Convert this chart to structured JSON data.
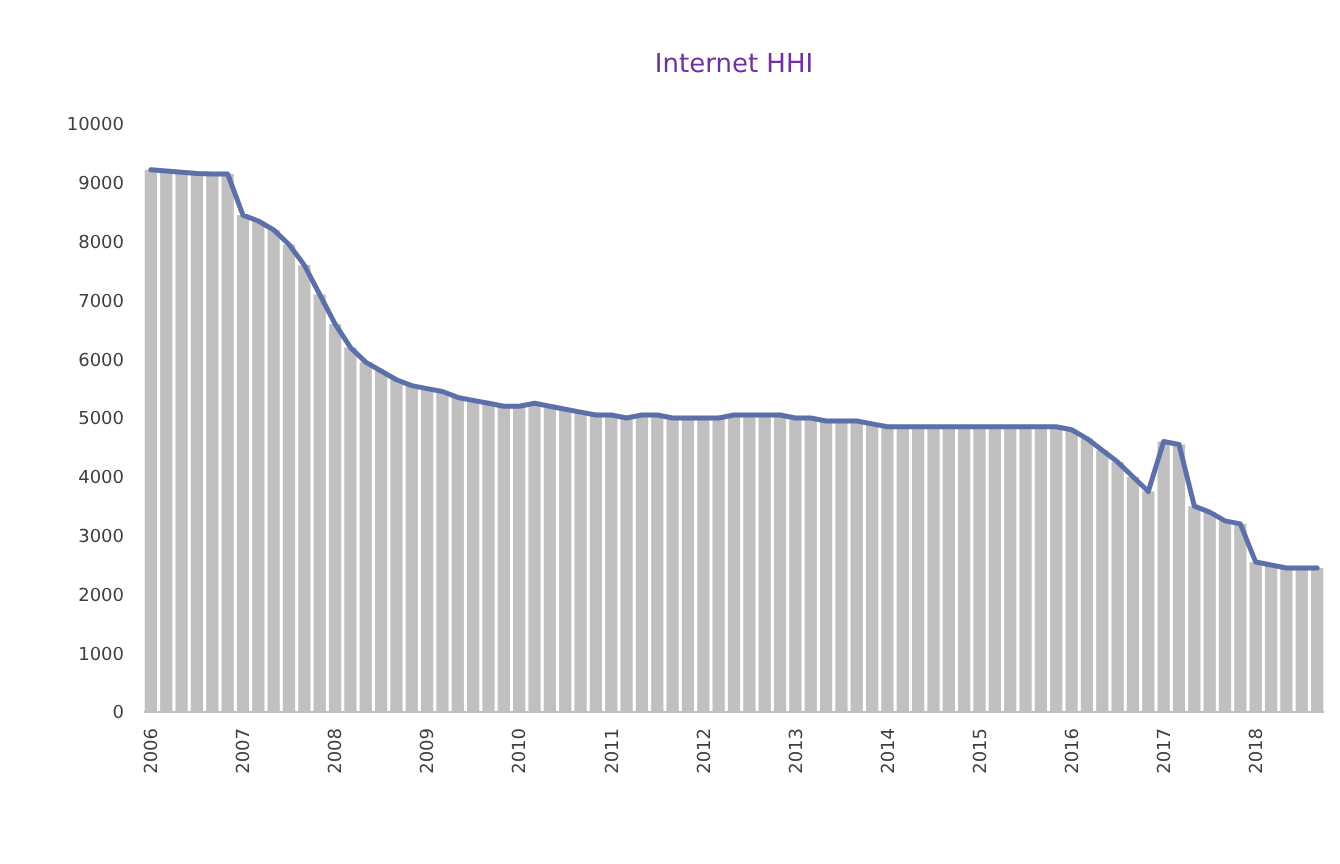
{
  "chart_data": {
    "type": "bar",
    "title": "Internet HHI",
    "categories": [
      "2006",
      null,
      null,
      null,
      null,
      null,
      "2007",
      null,
      null,
      null,
      null,
      null,
      "2008",
      null,
      null,
      null,
      null,
      null,
      "2009",
      null,
      null,
      null,
      null,
      null,
      "2010",
      null,
      null,
      null,
      null,
      null,
      "2011",
      null,
      null,
      null,
      null,
      null,
      "2012",
      null,
      null,
      null,
      null,
      null,
      "2013",
      null,
      null,
      null,
      null,
      null,
      "2014",
      null,
      null,
      null,
      null,
      null,
      "2015",
      null,
      null,
      null,
      null,
      null,
      "2016",
      null,
      null,
      null,
      null,
      null,
      "2017",
      null,
      null,
      null,
      null,
      null,
      "2018",
      null,
      null,
      null,
      null
    ],
    "series": [
      {
        "color": "#c0c0c0",
        "values": [
          9220,
          9200,
          9180,
          9160,
          9150,
          9150,
          8450,
          8350,
          8200,
          7950,
          7600,
          7100,
          6600,
          6200,
          5950,
          5800,
          5650,
          5550,
          5500,
          5450,
          5350,
          5300,
          5250,
          5200,
          5200,
          5250,
          5200,
          5150,
          5100,
          5050,
          5050,
          5000,
          5050,
          5050,
          5000,
          5000,
          5000,
          5000,
          5050,
          5050,
          5050,
          5050,
          5000,
          5000,
          4950,
          4950,
          4950,
          4900,
          4850,
          4850,
          4850,
          4850,
          4850,
          4850,
          4850,
          4850,
          4850,
          4850,
          4850,
          4850,
          4800,
          4650,
          4450,
          4250,
          4000,
          3750,
          4600,
          4550,
          3500,
          3400,
          3250,
          3200,
          2550,
          2500,
          2450,
          2450,
          2450
        ]
      },
      {
        "type": "line",
        "color": "#5b6fa8",
        "values": [
          9220,
          9200,
          9180,
          9160,
          9150,
          9150,
          8450,
          8350,
          8200,
          7950,
          7600,
          7100,
          6600,
          6200,
          5950,
          5800,
          5650,
          5550,
          5500,
          5450,
          5350,
          5300,
          5250,
          5200,
          5200,
          5250,
          5200,
          5150,
          5100,
          5050,
          5050,
          5000,
          5050,
          5050,
          5000,
          5000,
          5000,
          5000,
          5050,
          5050,
          5050,
          5050,
          5000,
          5000,
          4950,
          4950,
          4950,
          4900,
          4850,
          4850,
          4850,
          4850,
          4850,
          4850,
          4850,
          4850,
          4850,
          4850,
          4850,
          4850,
          4800,
          4650,
          4450,
          4250,
          4000,
          3750,
          4600,
          4550,
          3500,
          3400,
          3250,
          3200,
          2550,
          2500,
          2450,
          2450,
          2450
        ]
      }
    ],
    "ylim": [
      0,
      10000
    ],
    "yticks": [
      0,
      1000,
      2000,
      3000,
      4000,
      5000,
      6000,
      7000,
      8000,
      9000,
      10000
    ],
    "grid": false
  }
}
